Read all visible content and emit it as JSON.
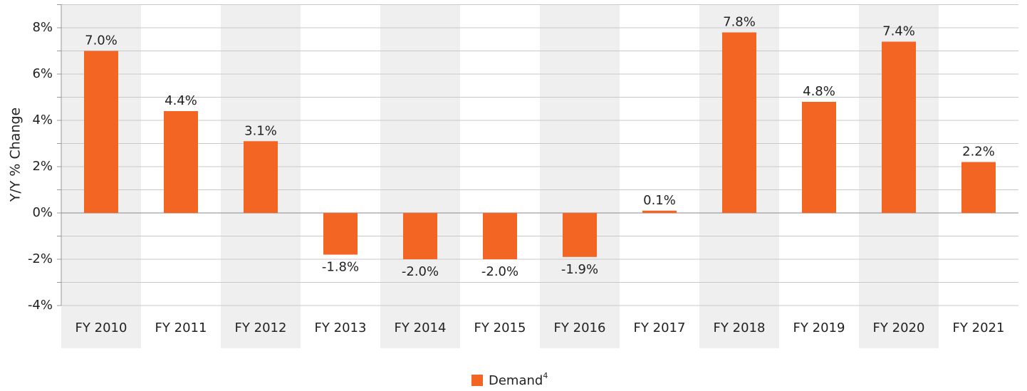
{
  "chart_data": {
    "type": "bar",
    "y_label": "Y/Y % Change",
    "categories": [
      "FY 2010",
      "FY 2011",
      "FY 2012",
      "FY 2013",
      "FY 2014",
      "FY 2015",
      "FY 2016",
      "FY 2017",
      "FY 2018",
      "FY 2019",
      "FY 2020",
      "FY 2021"
    ],
    "series": [
      {
        "name": "Demand",
        "name_superscript": "4",
        "color": "#f26522",
        "values": [
          7.0,
          4.4,
          3.1,
          -1.8,
          -2.0,
          -2.0,
          -1.9,
          0.1,
          7.8,
          4.8,
          7.4,
          2.2
        ],
        "value_labels": [
          "7.0%",
          "4.4%",
          "3.1%",
          "-1.8%",
          "-2.0%",
          "-2.0%",
          "-1.9%",
          "0.1%",
          "7.8%",
          "4.8%",
          "7.4%",
          "2.2%"
        ]
      }
    ],
    "ylim": [
      -4,
      9
    ],
    "yticks": [
      {
        "value": -4,
        "label": "-4%"
      },
      {
        "value": -2,
        "label": "-2%"
      },
      {
        "value": 0,
        "label": "0%"
      },
      {
        "value": 2,
        "label": "2%"
      },
      {
        "value": 4,
        "label": "4%"
      },
      {
        "value": 6,
        "label": "6%"
      },
      {
        "value": 8,
        "label": "8%"
      }
    ],
    "minor_yticks": [
      -3,
      -1,
      1,
      3,
      5,
      7,
      9
    ],
    "grid": true,
    "band_color": "#efefef",
    "legend": "bottom"
  }
}
